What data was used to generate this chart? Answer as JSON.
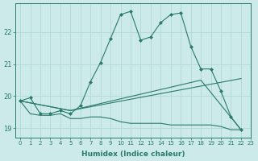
{
  "xlabel": "Humidex (Indice chaleur)",
  "background_color": "#cceaea",
  "grid_color": "#b0d8d8",
  "line_color": "#2a7a6a",
  "xlim": [
    -0.5,
    23
  ],
  "ylim": [
    18.7,
    22.9
  ],
  "yticks": [
    19,
    20,
    21,
    22
  ],
  "xticks": [
    0,
    1,
    2,
    3,
    4,
    5,
    6,
    7,
    8,
    9,
    10,
    11,
    12,
    13,
    14,
    15,
    16,
    17,
    18,
    19,
    20,
    21,
    22,
    23
  ],
  "series": [
    {
      "x": [
        0,
        1,
        2,
        3,
        4,
        5,
        6,
        7,
        8,
        9,
        10,
        11,
        12,
        13,
        14,
        15,
        16,
        17,
        18,
        19,
        20,
        21,
        22
      ],
      "y": [
        19.85,
        19.95,
        19.45,
        19.45,
        19.55,
        19.45,
        19.7,
        20.45,
        21.05,
        21.8,
        22.55,
        22.65,
        21.75,
        21.85,
        22.3,
        22.55,
        22.6,
        21.55,
        20.85,
        20.85,
        20.15,
        19.35,
        18.95
      ],
      "marker": true
    },
    {
      "x": [
        0,
        1,
        2,
        3,
        4,
        5,
        6,
        7,
        8,
        9,
        10,
        11,
        12,
        13,
        14,
        15,
        16,
        17,
        18,
        19,
        20,
        21,
        22
      ],
      "y": [
        19.85,
        19.45,
        19.4,
        19.4,
        19.45,
        19.3,
        19.3,
        19.35,
        19.35,
        19.3,
        19.2,
        19.15,
        19.15,
        19.15,
        19.15,
        19.1,
        19.1,
        19.1,
        19.1,
        19.1,
        19.05,
        18.95,
        18.95
      ],
      "marker": false
    },
    {
      "x": [
        0,
        5,
        22
      ],
      "y": [
        19.85,
        19.55,
        20.55
      ],
      "marker": false
    },
    {
      "x": [
        0,
        5,
        18,
        22
      ],
      "y": [
        19.85,
        19.55,
        20.5,
        18.95
      ],
      "marker": false
    }
  ]
}
